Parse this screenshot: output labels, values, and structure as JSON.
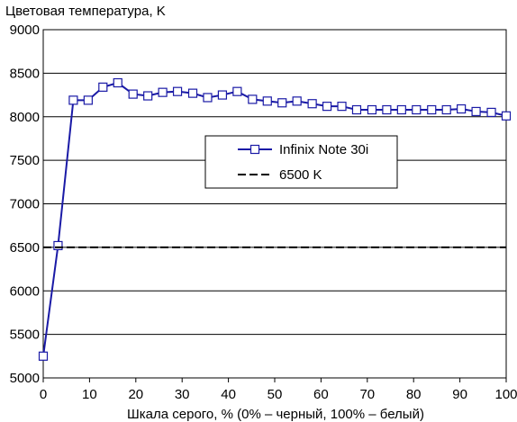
{
  "chart_data": {
    "type": "line",
    "ylabel": "Цветовая температура, K",
    "xlabel": "Шкала серого, % (0% – черный, 100% – белый)",
    "xlim": [
      0,
      100
    ],
    "ylim": [
      5000,
      9000
    ],
    "x_ticks": [
      "0",
      "10",
      "20",
      "30",
      "40",
      "50",
      "60",
      "70",
      "80",
      "90",
      "100"
    ],
    "y_ticks": [
      "5000",
      "5500",
      "6000",
      "6500",
      "7000",
      "7500",
      "8000",
      "8500",
      "9000"
    ],
    "grid": "horizontal",
    "legend_position": "center-right",
    "series": [
      {
        "name": "Infinix Note 30i",
        "color": "#1a1aa6",
        "marker": "square",
        "x": [
          0,
          3.2,
          6.5,
          9.7,
          12.9,
          16.1,
          19.4,
          22.6,
          25.8,
          29.0,
          32.3,
          35.5,
          38.7,
          41.9,
          45.2,
          48.4,
          51.6,
          54.8,
          58.1,
          61.3,
          64.5,
          67.7,
          71.0,
          74.2,
          77.4,
          80.6,
          83.9,
          87.1,
          90.3,
          93.5,
          96.8,
          100
        ],
        "values": [
          5250,
          6520,
          8190,
          8190,
          8340,
          8390,
          8260,
          8240,
          8280,
          8290,
          8270,
          8220,
          8250,
          8290,
          8200,
          8180,
          8160,
          8180,
          8150,
          8120,
          8120,
          8080,
          8080,
          8080,
          8080,
          8080,
          8080,
          8080,
          8090,
          8060,
          8050,
          8010
        ]
      },
      {
        "name": "6500 K",
        "color": "#000000",
        "dash": "dashed",
        "x": [
          0,
          100
        ],
        "values": [
          6500,
          6500
        ]
      }
    ]
  }
}
